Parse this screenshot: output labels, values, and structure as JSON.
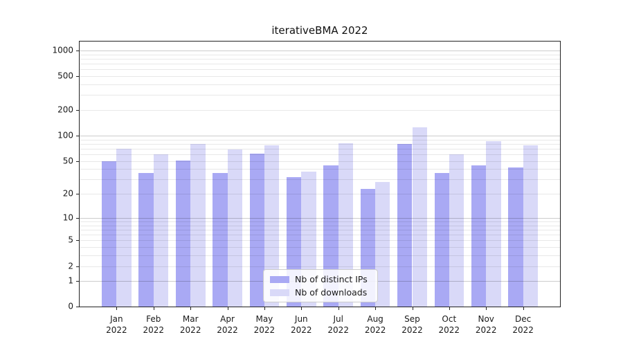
{
  "chart_data": {
    "type": "bar",
    "title": "iterativeBMA 2022",
    "categories": [
      "Jan",
      "Feb",
      "Mar",
      "Apr",
      "May",
      "Jun",
      "Jul",
      "Aug",
      "Sep",
      "Oct",
      "Nov",
      "Dec"
    ],
    "x_year_label": "2022",
    "series": [
      {
        "name": "Nb of distinct IPs",
        "color": "#a9a9f4",
        "values": [
          50,
          36,
          51,
          36,
          61,
          32,
          44,
          23,
          80,
          36,
          44,
          42
        ]
      },
      {
        "name": "Nb of downloads",
        "color": "#d9d9f8",
        "values": [
          70,
          60,
          79,
          68,
          77,
          37,
          81,
          28,
          125,
          60,
          86,
          77
        ]
      }
    ],
    "y_scale": "log1p",
    "y_ticks": [
      1000,
      500,
      200,
      100,
      50,
      20,
      10,
      5,
      2,
      1,
      0
    ],
    "ylim": [
      0,
      1260
    ],
    "xlabel": "",
    "ylabel": "",
    "grid": true,
    "legend_position": "lower center"
  }
}
